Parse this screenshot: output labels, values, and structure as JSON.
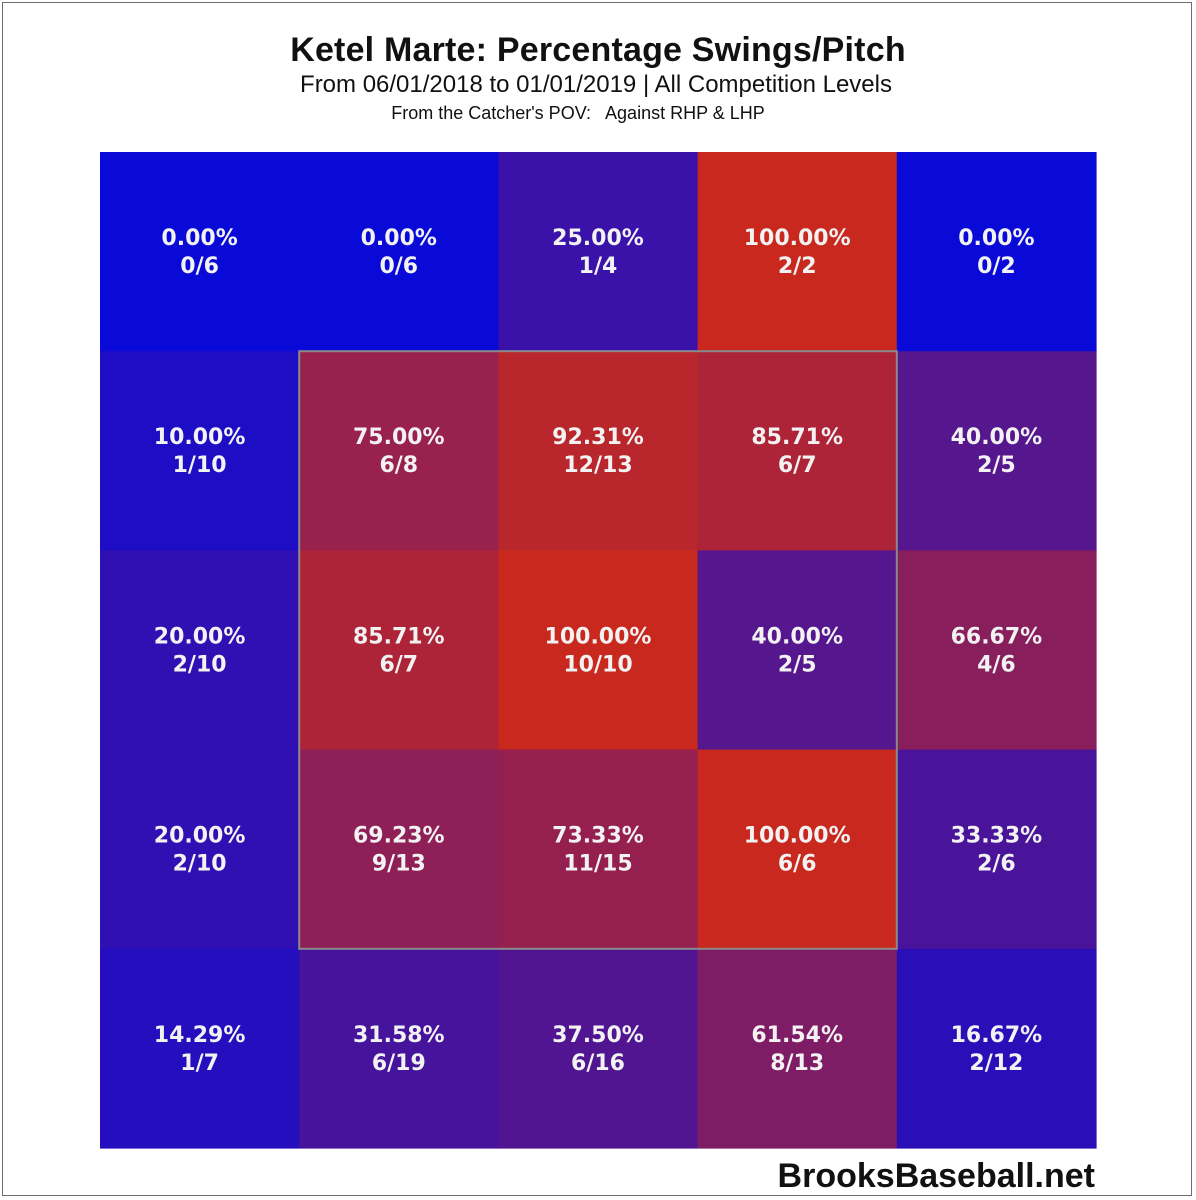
{
  "chart_data": {
    "type": "heatmap",
    "title": "Ketel Marte: Percentage Swings/Pitch",
    "subtitle": "From 06/01/2018 to 01/01/2019 | All Competition Levels",
    "subtitle2": "From the Catcher's POV:   Against RHP & LHP",
    "rows": 5,
    "cols": 5,
    "cells": [
      [
        {
          "pct": "0.00%",
          "frac": "0/6",
          "value": 0.0
        },
        {
          "pct": "0.00%",
          "frac": "0/6",
          "value": 0.0
        },
        {
          "pct": "25.00%",
          "frac": "1/4",
          "value": 25.0
        },
        {
          "pct": "100.00%",
          "frac": "2/2",
          "value": 100.0
        },
        {
          "pct": "0.00%",
          "frac": "0/2",
          "value": 0.0
        }
      ],
      [
        {
          "pct": "10.00%",
          "frac": "1/10",
          "value": 10.0
        },
        {
          "pct": "75.00%",
          "frac": "6/8",
          "value": 75.0
        },
        {
          "pct": "92.31%",
          "frac": "12/13",
          "value": 92.31
        },
        {
          "pct": "85.71%",
          "frac": "6/7",
          "value": 85.71
        },
        {
          "pct": "40.00%",
          "frac": "2/5",
          "value": 40.0
        }
      ],
      [
        {
          "pct": "20.00%",
          "frac": "2/10",
          "value": 20.0
        },
        {
          "pct": "85.71%",
          "frac": "6/7",
          "value": 85.71
        },
        {
          "pct": "100.00%",
          "frac": "10/10",
          "value": 100.0
        },
        {
          "pct": "40.00%",
          "frac": "2/5",
          "value": 40.0
        },
        {
          "pct": "66.67%",
          "frac": "4/6",
          "value": 66.67
        }
      ],
      [
        {
          "pct": "20.00%",
          "frac": "2/10",
          "value": 20.0
        },
        {
          "pct": "69.23%",
          "frac": "9/13",
          "value": 69.23
        },
        {
          "pct": "73.33%",
          "frac": "11/15",
          "value": 73.33
        },
        {
          "pct": "100.00%",
          "frac": "6/6",
          "value": 100.0
        },
        {
          "pct": "33.33%",
          "frac": "2/6",
          "value": 33.33
        }
      ],
      [
        {
          "pct": "14.29%",
          "frac": "1/7",
          "value": 14.29
        },
        {
          "pct": "31.58%",
          "frac": "6/19",
          "value": 31.58
        },
        {
          "pct": "37.50%",
          "frac": "6/16",
          "value": 37.5
        },
        {
          "pct": "61.54%",
          "frac": "8/13",
          "value": 61.54
        },
        {
          "pct": "16.67%",
          "frac": "2/12",
          "value": 16.67
        }
      ]
    ],
    "strike_zone": {
      "rows": [
        1,
        3
      ],
      "cols": [
        1,
        3
      ]
    },
    "colors": {
      "low": "#0a0ad8",
      "high": "#c8281e",
      "zone_border": "#8a8a8a",
      "text": "#f2f2f2"
    }
  },
  "footer": "BrooksBaseball.net"
}
